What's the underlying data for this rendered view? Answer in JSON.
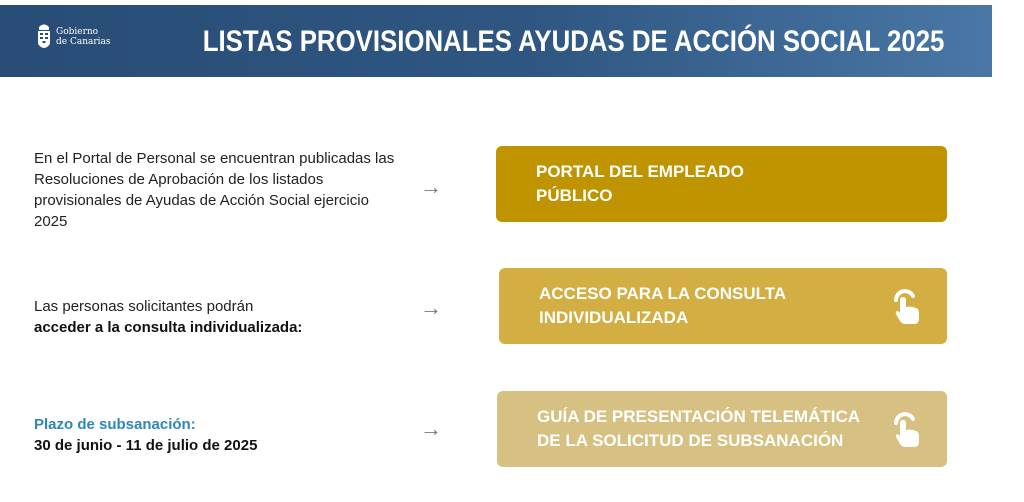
{
  "header": {
    "logo_line1": "Gobierno",
    "logo_line2": "de Canarias",
    "title": "LISTAS PROVISIONALES AYUDAS DE ACCIÓN SOCIAL 2025"
  },
  "rows": [
    {
      "text": "En el Portal de Personal se encuentran publicadas las Resoluciones de Aprobación de los listados provisionales de Ayudas de Acción Social ejercicio 2025",
      "arrow": "→",
      "button": "PORTAL DEL EMPLEADO PÚBLICO",
      "color": "#c09400"
    },
    {
      "text_plain": "Las personas solicitantes podrán",
      "text_bold": "acceder a la consulta individualizada:",
      "arrow": "→",
      "button": "ACCESO PARA LA CONSULTA INDIVIDUALIZADA",
      "color": "#d3ae43",
      "icon": "hand-pointer-icon"
    },
    {
      "text_blue": "Plazo de subsanación:",
      "text_bold": "30 de junio - 11 de julio de 2025",
      "arrow": "→",
      "button": "GUÍA DE PRESENTACIÓN TELEMÁTICA DE LA SOLICITUD DE SUBSANACIÓN",
      "color": "#d6c182",
      "icon": "hand-pointer-icon"
    }
  ]
}
